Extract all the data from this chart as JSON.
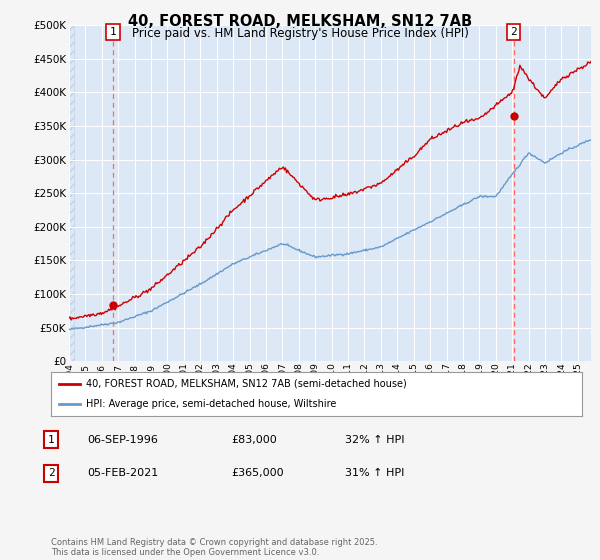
{
  "title": "40, FOREST ROAD, MELKSHAM, SN12 7AB",
  "subtitle": "Price paid vs. HM Land Registry's House Price Index (HPI)",
  "ylim": [
    0,
    500000
  ],
  "yticks": [
    0,
    50000,
    100000,
    150000,
    200000,
    250000,
    300000,
    350000,
    400000,
    450000,
    500000
  ],
  "ytick_labels": [
    "£0",
    "£50K",
    "£100K",
    "£150K",
    "£200K",
    "£250K",
    "£300K",
    "£350K",
    "£400K",
    "£450K",
    "£500K"
  ],
  "xmin": 1994.0,
  "xmax": 2025.8,
  "sale1_date": 1996.68,
  "sale1_price": 83000,
  "sale1_label": "1",
  "sale2_date": 2021.09,
  "sale2_price": 365000,
  "sale2_label": "2",
  "hpi_line_color": "#6699cc",
  "price_line_color": "#cc0000",
  "vline_color": "#ff6666",
  "marker_color": "#cc0000",
  "annotation_border_color": "#cc0000",
  "annotation_text_color": "black",
  "legend_label_red": "40, FOREST ROAD, MELKSHAM, SN12 7AB (semi-detached house)",
  "legend_label_blue": "HPI: Average price, semi-detached house, Wiltshire",
  "note1_label": "1",
  "note1_date": "06-SEP-1996",
  "note1_price": "£83,000",
  "note1_hpi": "32% ↑ HPI",
  "note2_label": "2",
  "note2_date": "05-FEB-2021",
  "note2_price": "£365,000",
  "note2_hpi": "31% ↑ HPI",
  "copyright_text": "Contains HM Land Registry data © Crown copyright and database right 2025.\nThis data is licensed under the Open Government Licence v3.0.",
  "fig_bg": "#f5f5f5",
  "plot_bg": "#dce8f5",
  "grid_color": "#ffffff",
  "title_fontsize": 10.5,
  "subtitle_fontsize": 8.5
}
